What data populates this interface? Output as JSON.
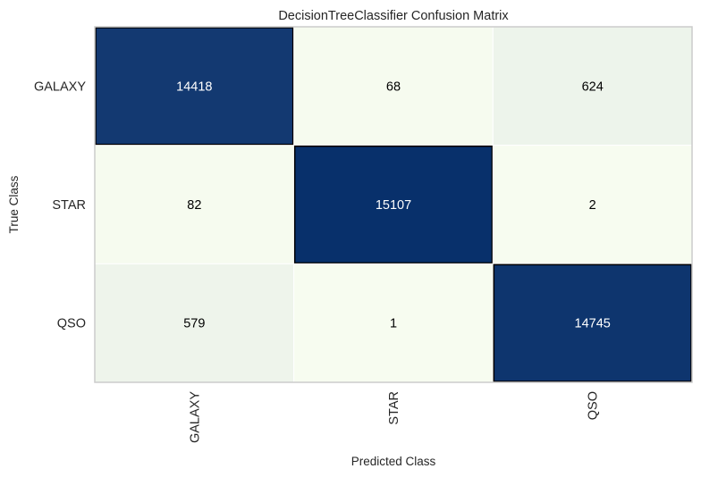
{
  "chart_data": {
    "type": "heatmap",
    "title": "DecisionTreeClassifier Confusion Matrix",
    "xlabel": "Predicted Class",
    "ylabel": "True Class",
    "row_labels": [
      "GALAXY",
      "STAR",
      "QSO"
    ],
    "col_labels": [
      "GALAXY",
      "STAR",
      "QSO"
    ],
    "values": [
      [
        14418,
        68,
        624
      ],
      [
        82,
        15107,
        2
      ],
      [
        579,
        1,
        14745
      ]
    ],
    "colors": {
      "high": "#08306b",
      "low": "#f7fcf0",
      "grid": "#ffffff",
      "diag_border": "#000000",
      "frame": "#cccccc",
      "text_on_dark": "#ffffff",
      "text_on_light": "#000000"
    }
  }
}
